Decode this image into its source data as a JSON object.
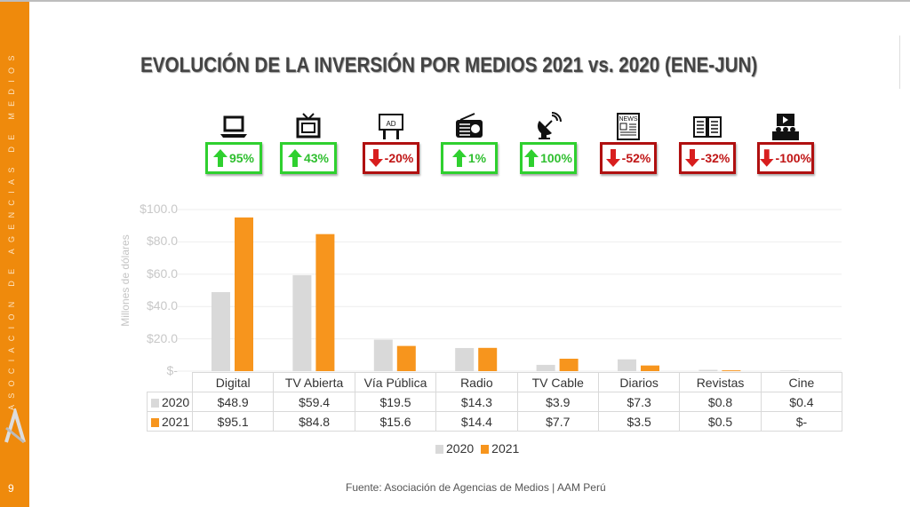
{
  "sidebar": {
    "org_text": "ASOCIACION DE AGENCIAS DE MEDIOS",
    "page_number": "9",
    "color": "#ef8a0c"
  },
  "title": "EVOLUCIÓN DE LA INVERSIÓN POR MEDIOS 2021 vs. 2020 (ENE-JUN)",
  "indicators": [
    {
      "icon": "laptop-icon",
      "change": "95%",
      "direction": "up"
    },
    {
      "icon": "tv-icon",
      "change": "43%",
      "direction": "up"
    },
    {
      "icon": "billboard-icon",
      "change": "-20%",
      "direction": "down",
      "icon_text": "AD"
    },
    {
      "icon": "radio-icon",
      "change": "1%",
      "direction": "up"
    },
    {
      "icon": "satellite-dish-icon",
      "change": "100%",
      "direction": "up"
    },
    {
      "icon": "newspaper-icon",
      "change": "-52%",
      "direction": "down",
      "icon_text": "NEWS"
    },
    {
      "icon": "magazine-icon",
      "change": "-32%",
      "direction": "down"
    },
    {
      "icon": "cinema-icon",
      "change": "-100%",
      "direction": "down"
    }
  ],
  "colors": {
    "up": "#2fd02f",
    "down": "#b01010",
    "series_2020": "#d9d9d9",
    "series_2021": "#f7951d"
  },
  "chart_data": {
    "type": "bar",
    "ylabel": "Millones de dólares",
    "ylim": [
      0,
      100
    ],
    "yticks": [
      "$-",
      "$20.0",
      "$40.0",
      "$60.0",
      "$80.0",
      "$100.0"
    ],
    "grid": true,
    "legend": "bottom",
    "categories": [
      "Digital",
      "TV Abierta",
      "Vía Pública",
      "Radio",
      "TV Cable",
      "Diarios",
      "Revistas",
      "Cine"
    ],
    "series": [
      {
        "name": "2020",
        "values": [
          48.9,
          59.4,
          19.5,
          14.3,
          3.9,
          7.3,
          0.8,
          0.4
        ],
        "labels": [
          "$48.9",
          "$59.4",
          "$19.5",
          "$14.3",
          "$3.9",
          "$7.3",
          "$0.8",
          "$0.4"
        ]
      },
      {
        "name": "2021",
        "values": [
          95.1,
          84.8,
          15.6,
          14.4,
          7.7,
          3.5,
          0.5,
          0
        ],
        "labels": [
          "$95.1",
          "$84.8",
          "$15.6",
          "$14.4",
          "$7.7",
          "$3.5",
          "$0.5",
          "$-"
        ]
      }
    ]
  },
  "source": "Fuente: Asociación de Agencias de Medios | AAM Perú"
}
